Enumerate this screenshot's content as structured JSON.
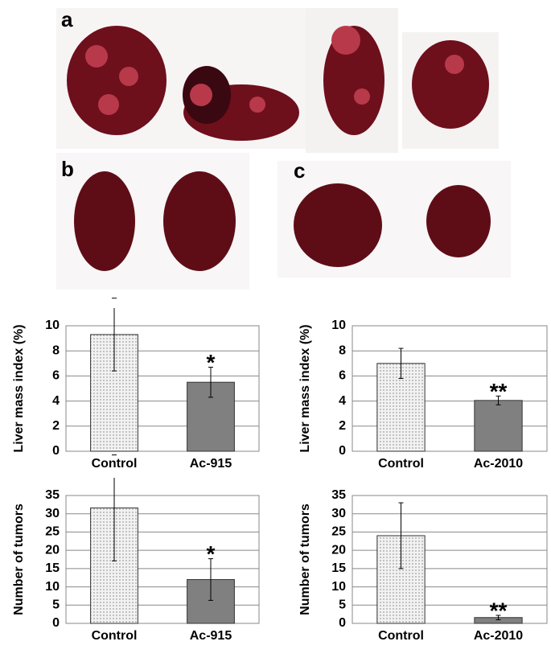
{
  "panels": [
    "a",
    "b",
    "c"
  ],
  "chart_data": [
    {
      "type": "bar",
      "ylabel": "Liver mass index (%)",
      "categories": [
        "Control",
        "Ac-915"
      ],
      "values": [
        9.3,
        5.5
      ],
      "errors": [
        2.9,
        1.2
      ],
      "significance": [
        null,
        "*"
      ],
      "colors": [
        "#f2f2f2",
        "#808080"
      ],
      "ylim": [
        0,
        10
      ],
      "yticks": [
        0,
        2,
        4,
        6,
        8,
        10
      ],
      "grid": true
    },
    {
      "type": "bar",
      "ylabel": "Liver mass index (%)",
      "categories": [
        "Control",
        "Ac-2010"
      ],
      "values": [
        7.0,
        4.05
      ],
      "errors": [
        1.2,
        0.35
      ],
      "significance": [
        null,
        "**"
      ],
      "colors": [
        "#f2f2f2",
        "#808080"
      ],
      "ylim": [
        0,
        10
      ],
      "yticks": [
        0,
        2,
        4,
        6,
        8,
        10
      ],
      "grid": true
    },
    {
      "type": "bar",
      "ylabel": "Number of tumors",
      "categories": [
        "Control",
        "Ac-915"
      ],
      "values": [
        31.6,
        12
      ],
      "errors": [
        14.5,
        5.7
      ],
      "significance": [
        null,
        "*"
      ],
      "colors": [
        "#f2f2f2",
        "#808080"
      ],
      "ylim": [
        0,
        35
      ],
      "yticks": [
        0,
        5,
        10,
        15,
        20,
        25,
        30,
        35
      ],
      "grid": true
    },
    {
      "type": "bar",
      "ylabel": "Number of tumors",
      "categories": [
        "Control",
        "Ac-2010"
      ],
      "values": [
        24,
        1.6
      ],
      "errors": [
        9,
        0.6
      ],
      "significance": [
        null,
        "**"
      ],
      "colors": [
        "#f2f2f2",
        "#808080"
      ],
      "ylim": [
        0,
        35
      ],
      "yticks": [
        0,
        5,
        10,
        15,
        20,
        25,
        30,
        35
      ],
      "grid": true
    }
  ]
}
